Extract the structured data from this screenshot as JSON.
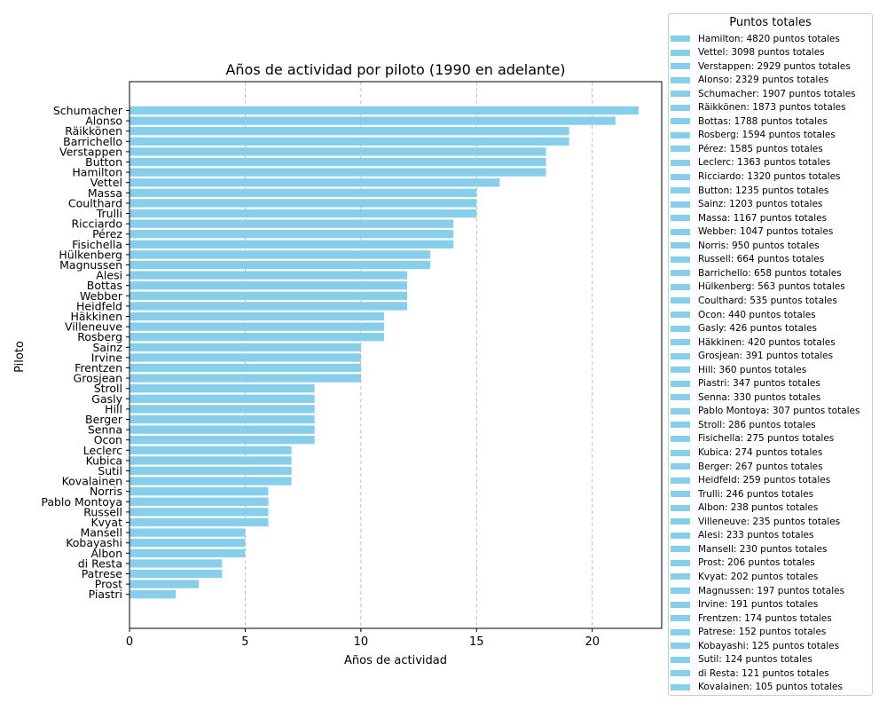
{
  "chart_data": {
    "type": "bar",
    "orientation": "horizontal",
    "title": "Años de actividad por piloto (1990 en adelante)",
    "xlabel": "Años de actividad",
    "ylabel": "Piloto",
    "xlim": [
      0,
      23
    ],
    "xticks": [
      0,
      5,
      10,
      15,
      20
    ],
    "grid": "x-dashed",
    "bar_color": "#87ceeb",
    "categories": [
      "Schumacher",
      "Alonso",
      "Räikkönen",
      "Barrichello",
      "Verstappen",
      "Button",
      "Hamilton",
      "Vettel",
      "Massa",
      "Coulthard",
      "Trulli",
      "Ricciardo",
      "Pérez",
      "Fisichella",
      "Hülkenberg",
      "Magnussen",
      "Alesi",
      "Bottas",
      "Webber",
      "Heidfeld",
      "Häkkinen",
      "Villeneuve",
      "Rosberg",
      "Sainz",
      "Irvine",
      "Frentzen",
      "Grosjean",
      "Stroll",
      "Gasly",
      "Hill",
      "Berger",
      "Senna",
      "Ocon",
      "Leclerc",
      "Kubica",
      "Sutil",
      "Kovalainen",
      "Norris",
      "Pablo Montoya",
      "Russell",
      "Kvyat",
      "Mansell",
      "Kobayashi",
      "Albon",
      "di Resta",
      "Patrese",
      "Prost",
      "Piastri"
    ],
    "values": [
      22,
      21,
      19,
      19,
      18,
      18,
      18,
      16,
      15,
      15,
      15,
      14,
      14,
      14,
      13,
      13,
      12,
      12,
      12,
      12,
      11,
      11,
      11,
      10,
      10,
      10,
      10,
      8,
      8,
      8,
      8,
      8,
      8,
      7,
      7,
      7,
      7,
      6,
      6,
      6,
      6,
      5,
      5,
      5,
      4,
      4,
      3,
      2
    ],
    "legend": {
      "title": "Puntos totales",
      "placement": "outside-right",
      "entries": [
        "Hamilton: 4820 puntos totales",
        "Vettel: 3098 puntos totales",
        "Verstappen: 2929 puntos totales",
        "Alonso: 2329 puntos totales",
        "Schumacher: 1907 puntos totales",
        "Räikkönen: 1873 puntos totales",
        "Bottas: 1788 puntos totales",
        "Rosberg: 1594 puntos totales",
        "Pérez: 1585 puntos totales",
        "Leclerc: 1363 puntos totales",
        "Ricciardo: 1320 puntos totales",
        "Button: 1235 puntos totales",
        "Sainz: 1203 puntos totales",
        "Massa: 1167 puntos totales",
        "Webber: 1047 puntos totales",
        "Norris: 950 puntos totales",
        "Russell: 664 puntos totales",
        "Barrichello: 658 puntos totales",
        "Hülkenberg: 563 puntos totales",
        "Coulthard: 535 puntos totales",
        "Ocon: 440 puntos totales",
        "Gasly: 426 puntos totales",
        "Häkkinen: 420 puntos totales",
        "Grosjean: 391 puntos totales",
        "Hill: 360 puntos totales",
        "Piastri: 347 puntos totales",
        "Senna: 330 puntos totales",
        "Pablo Montoya: 307 puntos totales",
        "Stroll: 286 puntos totales",
        "Fisichella: 275 puntos totales",
        "Kubica: 274 puntos totales",
        "Berger: 267 puntos totales",
        "Heidfeld: 259 puntos totales",
        "Trulli: 246 puntos totales",
        "Albon: 238 puntos totales",
        "Villeneuve: 235 puntos totales",
        "Alesi: 233 puntos totales",
        "Mansell: 230 puntos totales",
        "Prost: 206 puntos totales",
        "Kvyat: 202 puntos totales",
        "Magnussen: 197 puntos totales",
        "Irvine: 191 puntos totales",
        "Frentzen: 174 puntos totales",
        "Patrese: 152 puntos totales",
        "Kobayashi: 125 puntos totales",
        "Sutil: 124 puntos totales",
        "di Resta: 121 puntos totales",
        "Kovalainen: 105 puntos totales"
      ]
    }
  }
}
